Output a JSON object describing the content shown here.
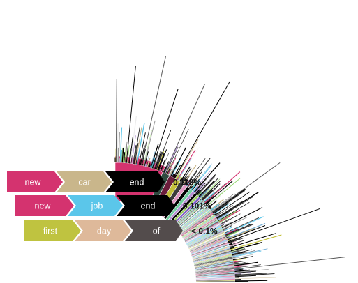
{
  "chart_data": {
    "type": "sunburst",
    "layout": "quarter-sunburst",
    "legend": [
      {
        "sequence": [
          "new",
          "car",
          "end"
        ],
        "colors": [
          "#d4336f",
          "#c9b68b",
          "#000000"
        ],
        "value": "0.118%"
      },
      {
        "sequence": [
          "new",
          "job",
          "end"
        ],
        "colors": [
          "#d4336f",
          "#5bc6ea",
          "#000000"
        ],
        "value": "0.101%"
      },
      {
        "sequence": [
          "first",
          "day",
          "of"
        ],
        "colors": [
          "#bfc340",
          "#deb99a",
          "#534c4c"
        ],
        "value": "< 0.1%"
      }
    ],
    "inner_ring": [
      {
        "color": "#d4336f",
        "share": 0.26
      },
      {
        "color": "#2f4a3f",
        "share": 0.04
      },
      {
        "color": "#6b1e3c",
        "share": 0.035
      },
      {
        "color": "#c4c13b",
        "share": 0.03
      },
      {
        "color": "#3b3b3b",
        "share": 0.025
      },
      {
        "color": "#e199c3",
        "share": 0.02
      },
      {
        "color": "#000000",
        "share": 0.02
      },
      {
        "color": "#73cfa0",
        "share": 0.018
      },
      {
        "color": "#b88fd4",
        "share": 0.016
      },
      {
        "color": "#000000",
        "share": 0.015
      },
      {
        "color": "#9ad05c",
        "share": 0.014
      },
      {
        "color": "#7c60c9",
        "share": 0.013
      }
    ],
    "tail_palette": [
      "#000000",
      "#3b3b3b",
      "#8fd66a",
      "#b49ad6",
      "#d4336f",
      "#5bc6ea",
      "#c9b68b",
      "#e8a0c8",
      "#6aa9d4",
      "#9a9a9a",
      "#c4c13b",
      "#ededed"
    ]
  }
}
